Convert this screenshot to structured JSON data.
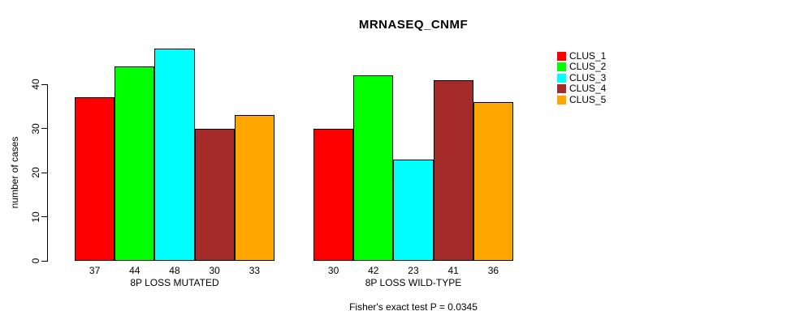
{
  "chart_data": {
    "type": "bar",
    "title": "MRNASEQ_CNMF",
    "ylabel": "number of cases",
    "xlabel": "",
    "categories": [
      "8P LOSS MUTATED",
      "8P LOSS WILD-TYPE"
    ],
    "series": [
      {
        "name": "CLUS_1",
        "color": "#FF0000",
        "values": [
          37,
          30
        ]
      },
      {
        "name": "CLUS_2",
        "color": "#00FF00",
        "values": [
          44,
          42
        ]
      },
      {
        "name": "CLUS_3",
        "color": "#00FFFF",
        "values": [
          48,
          23
        ]
      },
      {
        "name": "CLUS_4",
        "color": "#A52A2A",
        "values": [
          30,
          41
        ]
      },
      {
        "name": "CLUS_5",
        "color": "#FFA500",
        "values": [
          33,
          36
        ]
      }
    ],
    "bar_value_labels": {
      "8P LOSS MUTATED": [
        37,
        44,
        48,
        30,
        33
      ],
      "8P LOSS WILD-TYPE": [
        30,
        42,
        23,
        41,
        36
      ]
    },
    "yticks": [
      0,
      10,
      20,
      30,
      40
    ],
    "ylim": [
      0,
      48
    ],
    "grid": false,
    "legend": {
      "position": "right",
      "entries": [
        "CLUS_1",
        "CLUS_2",
        "CLUS_3",
        "CLUS_4",
        "CLUS_5"
      ]
    },
    "footnote": "Fisher's exact test P = 0.0345"
  }
}
